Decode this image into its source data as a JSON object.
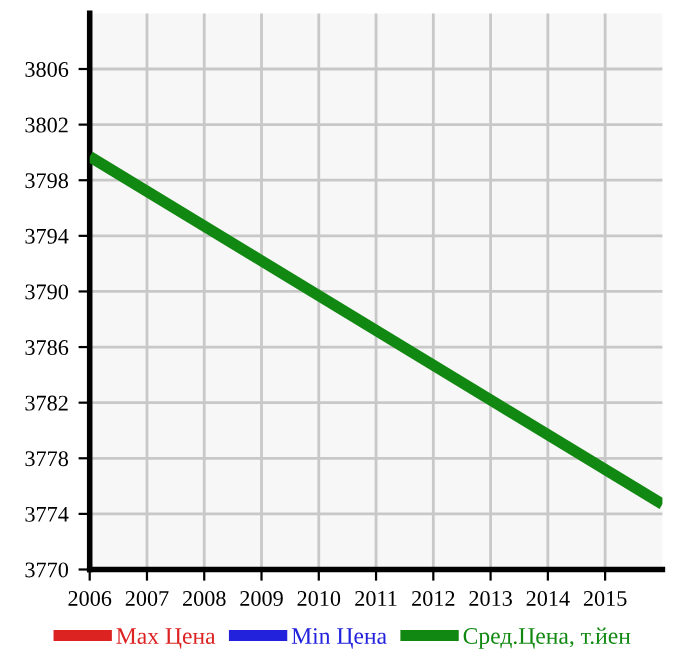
{
  "chart_data": {
    "type": "line",
    "x": [
      2006,
      2016
    ],
    "series": [
      {
        "name": "Max Цена",
        "color": "#dd2222",
        "values": [
          null,
          null
        ]
      },
      {
        "name": "Min Цена",
        "color": "#2222dd",
        "values": [
          null,
          null
        ]
      },
      {
        "name": "Сред.Цена, т.йен",
        "color": "#118811",
        "values": [
          3799.7,
          3774.7
        ]
      }
    ],
    "xlim": [
      2006,
      2016
    ],
    "xticks": [
      2006,
      2007,
      2008,
      2009,
      2010,
      2011,
      2012,
      2013,
      2014,
      2015
    ],
    "ylim": [
      3770,
      3810
    ],
    "yticks": [
      3770,
      3774,
      3778,
      3782,
      3786,
      3790,
      3794,
      3798,
      3802,
      3806
    ],
    "grid": true,
    "legend": "bottom",
    "marker": "none",
    "line_style": "solid"
  }
}
